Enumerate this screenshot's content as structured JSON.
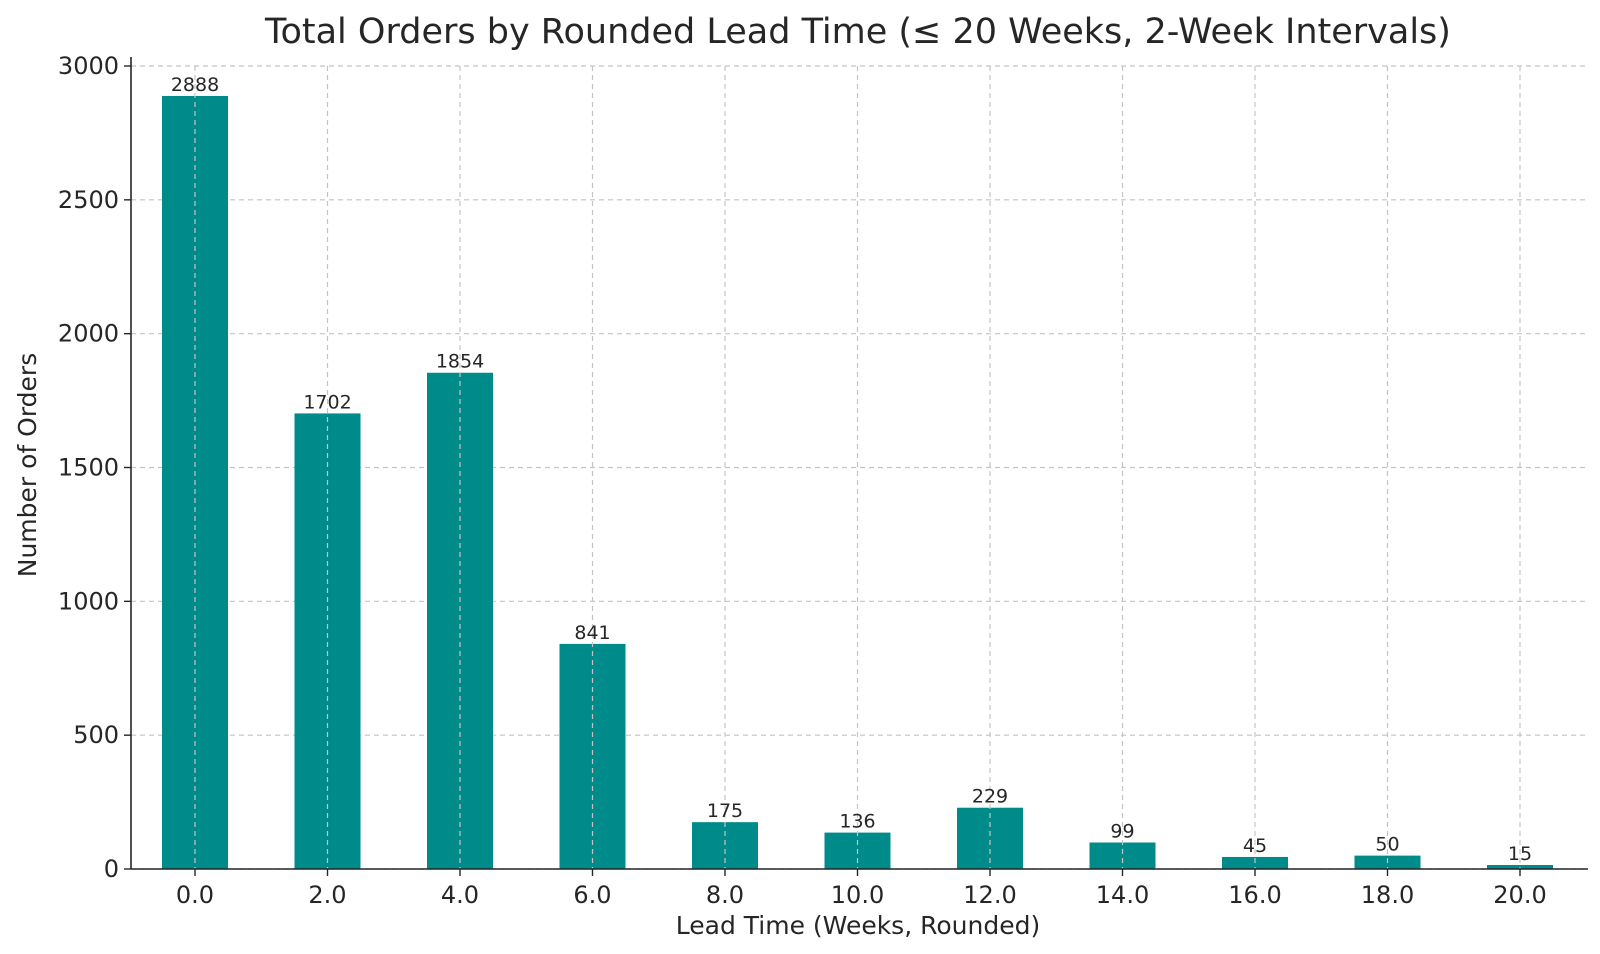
{
  "chart_data": {
    "type": "bar",
    "title": "Total Orders by Rounded Lead Time (≤ 20 Weeks, 2-Week Intervals)",
    "xlabel": "Lead Time (Weeks, Rounded)",
    "ylabel": "Number of Orders",
    "categories": [
      "0.0",
      "2.0",
      "4.0",
      "6.0",
      "8.0",
      "10.0",
      "12.0",
      "14.0",
      "16.0",
      "18.0",
      "20.0"
    ],
    "values": [
      2888,
      1702,
      1854,
      841,
      175,
      136,
      229,
      99,
      45,
      50,
      15
    ],
    "data_labels": [
      "2888",
      "1702",
      "1854",
      "841",
      "175",
      "136",
      "229",
      "99",
      "45",
      "50",
      "15"
    ],
    "yticks": [
      0,
      500,
      1000,
      1500,
      2000,
      2500,
      3000
    ],
    "ylim": [
      0,
      3000
    ],
    "grid": true,
    "legend": "none",
    "bar_color": "#008b8b"
  }
}
